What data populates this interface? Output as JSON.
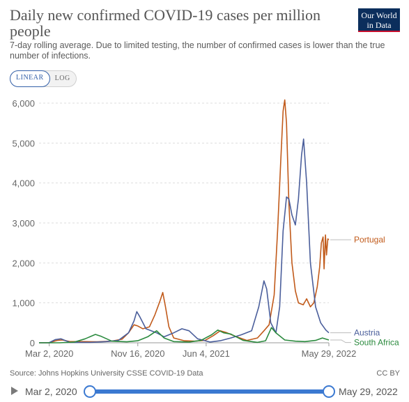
{
  "header": {
    "title": "Daily new confirmed COVID-19 cases per million people",
    "subtitle": "7-day rolling average. Due to limited testing, the number of confirmed cases is lower than the true number of infections.",
    "logo_line1": "Our World",
    "logo_line2": "in Data"
  },
  "controls": {
    "linear_label": "LINEAR",
    "log_label": "LOG",
    "active": "LINEAR"
  },
  "footer": {
    "source": "Source: Johns Hopkins University CSSE COVID-19 Data",
    "license": "CC BY"
  },
  "timeline": {
    "start_label": "Mar 2, 2020",
    "end_label": "May 29, 2022",
    "play_icon": "play-icon"
  },
  "chart_data": {
    "type": "line",
    "title": "Daily new confirmed COVID-19 cases per million people",
    "xlabel": "",
    "ylabel": "",
    "ylim": [
      0,
      6000
    ],
    "yticks": [
      0,
      1000,
      2000,
      3000,
      4000,
      5000,
      6000
    ],
    "ytick_labels": [
      "0",
      "1,000",
      "2,000",
      "3,000",
      "4,000",
      "5,000",
      "6,000"
    ],
    "xlim": [
      "2020-02-01",
      "2022-05-29"
    ],
    "xticks": [
      "2020-03-02",
      "2020-11-16",
      "2021-06-04",
      "2022-05-29"
    ],
    "xtick_labels": [
      "Mar 2, 2020",
      "Nov 16, 2020",
      "Jun 4, 2021",
      "May 29, 2022"
    ],
    "grid": "horizontal dotted",
    "legend": "right, end-of-line labels",
    "series": [
      {
        "name": "Portugal",
        "color": "#c15a1a",
        "points": [
          [
            "2020-02-01",
            0
          ],
          [
            "2020-03-01",
            0
          ],
          [
            "2020-03-25",
            60
          ],
          [
            "2020-04-10",
            70
          ],
          [
            "2020-05-01",
            30
          ],
          [
            "2020-06-15",
            30
          ],
          [
            "2020-07-20",
            25
          ],
          [
            "2020-09-01",
            40
          ],
          [
            "2020-10-01",
            90
          ],
          [
            "2020-10-20",
            250
          ],
          [
            "2020-11-05",
            450
          ],
          [
            "2020-11-16",
            420
          ],
          [
            "2020-12-01",
            350
          ],
          [
            "2020-12-20",
            400
          ],
          [
            "2021-01-05",
            700
          ],
          [
            "2021-01-20",
            1050
          ],
          [
            "2021-01-28",
            1260
          ],
          [
            "2021-02-05",
            900
          ],
          [
            "2021-02-15",
            400
          ],
          [
            "2021-03-01",
            120
          ],
          [
            "2021-04-01",
            50
          ],
          [
            "2021-05-01",
            40
          ],
          [
            "2021-06-01",
            60
          ],
          [
            "2021-06-25",
            180
          ],
          [
            "2021-07-15",
            300
          ],
          [
            "2021-08-01",
            260
          ],
          [
            "2021-09-01",
            150
          ],
          [
            "2021-10-01",
            60
          ],
          [
            "2021-11-01",
            120
          ],
          [
            "2021-11-20",
            300
          ],
          [
            "2021-12-05",
            450
          ],
          [
            "2021-12-20",
            1200
          ],
          [
            "2021-12-30",
            2800
          ],
          [
            "2022-01-08",
            4500
          ],
          [
            "2022-01-15",
            5800
          ],
          [
            "2022-01-20",
            6080
          ],
          [
            "2022-01-25",
            5500
          ],
          [
            "2022-02-01",
            3500
          ],
          [
            "2022-02-10",
            2000
          ],
          [
            "2022-02-20",
            1300
          ],
          [
            "2022-03-01",
            1000
          ],
          [
            "2022-03-15",
            950
          ],
          [
            "2022-03-25",
            1100
          ],
          [
            "2022-04-05",
            900
          ],
          [
            "2022-04-15",
            1000
          ],
          [
            "2022-04-25",
            1400
          ],
          [
            "2022-05-02",
            1900
          ],
          [
            "2022-05-07",
            2500
          ],
          [
            "2022-05-12",
            2650
          ],
          [
            "2022-05-15",
            1850
          ],
          [
            "2022-05-19",
            2700
          ],
          [
            "2022-05-22",
            2200
          ],
          [
            "2022-05-26",
            2600
          ],
          [
            "2022-05-29",
            2580
          ]
        ]
      },
      {
        "name": "Austria",
        "color": "#4a5e9b",
        "points": [
          [
            "2020-02-01",
            0
          ],
          [
            "2020-03-01",
            0
          ],
          [
            "2020-03-20",
            80
          ],
          [
            "2020-04-05",
            100
          ],
          [
            "2020-05-01",
            10
          ],
          [
            "2020-07-01",
            10
          ],
          [
            "2020-08-15",
            30
          ],
          [
            "2020-09-20",
            60
          ],
          [
            "2020-10-20",
            250
          ],
          [
            "2020-11-05",
            550
          ],
          [
            "2020-11-13",
            780
          ],
          [
            "2020-11-22",
            650
          ],
          [
            "2020-12-10",
            350
          ],
          [
            "2021-01-10",
            250
          ],
          [
            "2021-02-01",
            150
          ],
          [
            "2021-03-01",
            250
          ],
          [
            "2021-03-25",
            350
          ],
          [
            "2021-04-15",
            300
          ],
          [
            "2021-05-10",
            100
          ],
          [
            "2021-06-15",
            20
          ],
          [
            "2021-07-15",
            50
          ],
          [
            "2021-08-15",
            120
          ],
          [
            "2021-09-15",
            200
          ],
          [
            "2021-10-15",
            300
          ],
          [
            "2021-11-05",
            900
          ],
          [
            "2021-11-20",
            1550
          ],
          [
            "2021-11-28",
            1350
          ],
          [
            "2021-12-10",
            500
          ],
          [
            "2021-12-25",
            250
          ],
          [
            "2022-01-05",
            900
          ],
          [
            "2022-01-15",
            2800
          ],
          [
            "2022-01-25",
            3650
          ],
          [
            "2022-02-01",
            3600
          ],
          [
            "2022-02-10",
            3200
          ],
          [
            "2022-02-20",
            2950
          ],
          [
            "2022-03-01",
            3600
          ],
          [
            "2022-03-10",
            4700
          ],
          [
            "2022-03-16",
            5100
          ],
          [
            "2022-03-25",
            4000
          ],
          [
            "2022-04-05",
            2000
          ],
          [
            "2022-04-20",
            900
          ],
          [
            "2022-05-05",
            500
          ],
          [
            "2022-05-20",
            320
          ],
          [
            "2022-05-29",
            250
          ]
        ]
      },
      {
        "name": "South Africa",
        "color": "#2b8a3e",
        "points": [
          [
            "2020-02-01",
            0
          ],
          [
            "2020-04-01",
            0
          ],
          [
            "2020-05-15",
            20
          ],
          [
            "2020-06-15",
            100
          ],
          [
            "2020-07-15",
            210
          ],
          [
            "2020-08-01",
            160
          ],
          [
            "2020-09-01",
            40
          ],
          [
            "2020-10-15",
            25
          ],
          [
            "2020-11-16",
            50
          ],
          [
            "2020-12-15",
            150
          ],
          [
            "2021-01-10",
            300
          ],
          [
            "2021-02-01",
            120
          ],
          [
            "2021-03-01",
            30
          ],
          [
            "2021-04-15",
            20
          ],
          [
            "2021-05-20",
            60
          ],
          [
            "2021-06-20",
            200
          ],
          [
            "2021-07-08",
            320
          ],
          [
            "2021-07-25",
            250
          ],
          [
            "2021-08-15",
            220
          ],
          [
            "2021-09-20",
            60
          ],
          [
            "2021-11-01",
            10
          ],
          [
            "2021-11-25",
            50
          ],
          [
            "2021-12-12",
            380
          ],
          [
            "2021-12-25",
            250
          ],
          [
            "2022-01-20",
            70
          ],
          [
            "2022-02-20",
            40
          ],
          [
            "2022-03-20",
            30
          ],
          [
            "2022-04-20",
            60
          ],
          [
            "2022-05-10",
            120
          ],
          [
            "2022-05-29",
            70
          ]
        ]
      }
    ]
  }
}
